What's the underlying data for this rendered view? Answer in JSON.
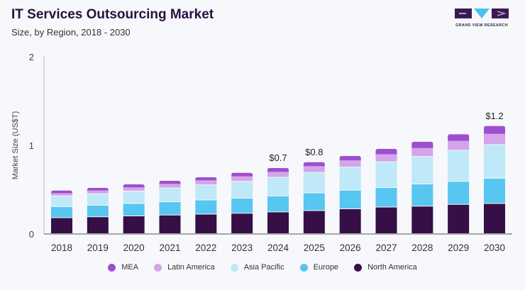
{
  "header": {
    "title": "IT Services Outsourcing Market",
    "subtitle": "Size, by Region, 2018 - 2030"
  },
  "logo": {
    "text": "GRAND VIEW RESEARCH"
  },
  "chart_data": {
    "type": "bar",
    "stacked": true,
    "title": "IT Services Outsourcing Market",
    "subtitle": "Size, by Region, 2018 - 2030",
    "xlabel": "",
    "ylabel": "Market Size (US$T)",
    "ylim": [
      0,
      2
    ],
    "yticks": [
      "0",
      "1",
      "2"
    ],
    "grid": false,
    "legend_position": "bottom",
    "categories": [
      "2018",
      "2019",
      "2020",
      "2021",
      "2022",
      "2023",
      "2024",
      "2025",
      "2026",
      "2027",
      "2028",
      "2029",
      "2030"
    ],
    "series": [
      {
        "name": "North America",
        "color": "#350f45",
        "values": [
          0.18,
          0.19,
          0.2,
          0.21,
          0.22,
          0.23,
          0.245,
          0.26,
          0.28,
          0.3,
          0.31,
          0.33,
          0.34
        ]
      },
      {
        "name": "Europe",
        "color": "#57c6f0",
        "values": [
          0.125,
          0.13,
          0.14,
          0.15,
          0.16,
          0.17,
          0.18,
          0.2,
          0.21,
          0.22,
          0.25,
          0.26,
          0.285
        ]
      },
      {
        "name": "Asia Pacific",
        "color": "#bfe8f8",
        "values": [
          0.12,
          0.13,
          0.14,
          0.155,
          0.17,
          0.19,
          0.21,
          0.23,
          0.26,
          0.29,
          0.31,
          0.35,
          0.38
        ]
      },
      {
        "name": "Latin America",
        "color": "#d4a5ea",
        "values": [
          0.035,
          0.04,
          0.045,
          0.05,
          0.055,
          0.06,
          0.066,
          0.075,
          0.08,
          0.09,
          0.1,
          0.11,
          0.125
        ]
      },
      {
        "name": "MEA",
        "color": "#9d4fd0",
        "values": [
          0.03,
          0.03,
          0.035,
          0.035,
          0.035,
          0.04,
          0.043,
          0.045,
          0.05,
          0.06,
          0.07,
          0.075,
          0.088
        ]
      }
    ],
    "annotations": [
      {
        "category": "2024",
        "label": "$0.7"
      },
      {
        "category": "2025",
        "label": "$0.8"
      },
      {
        "category": "2030",
        "label": "$1.2"
      }
    ],
    "legend_order": [
      "MEA",
      "Latin America",
      "Asia Pacific",
      "Europe",
      "North America"
    ]
  }
}
